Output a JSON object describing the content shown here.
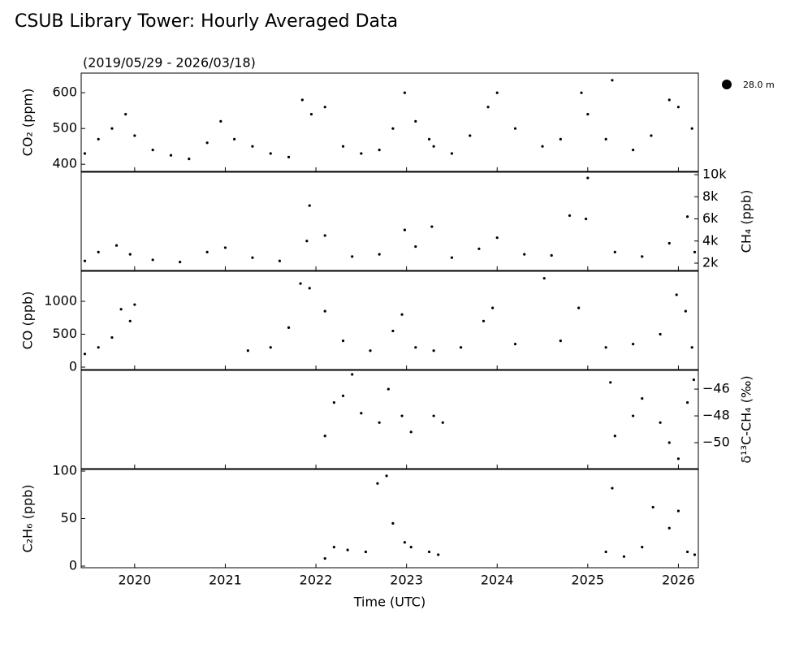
{
  "chart_data": {
    "type": "scatter",
    "title": "CSUB Library Tower: Hourly Averaged Data",
    "subtitle": "(2019/05/29 - 2026/03/18)",
    "xlabel": "Time (UTC)",
    "xlim": [
      2019.41,
      2026.22
    ],
    "xticks": [
      2020,
      2021,
      2022,
      2023,
      2024,
      2025,
      2026
    ],
    "legend": "upper right",
    "panels": [
      {
        "ylabel": "CO₂ (ppm)",
        "side": "left",
        "ylim": [
          380,
          655
        ],
        "yticks": [
          400,
          500,
          600
        ],
        "series": [
          {
            "name": "28.0 m",
            "color": "#000000",
            "x": [
              2019.45,
              2019.6,
              2019.75,
              2019.9,
              2020.0,
              2020.2,
              2020.4,
              2020.6,
              2020.8,
              2020.95,
              2021.1,
              2021.3,
              2021.5,
              2021.7,
              2021.85,
              2021.95,
              2022.1,
              2022.3,
              2022.5,
              2022.7,
              2022.85,
              2022.98,
              2023.1,
              2023.25,
              2023.3,
              2023.5,
              2023.7,
              2023.9,
              2024.0,
              2024.2,
              2024.5,
              2024.7,
              2024.93,
              2025.0,
              2025.2,
              2025.27,
              2025.5,
              2025.7,
              2025.9,
              2026.0,
              2026.15
            ],
            "values": [
              430,
              470,
              500,
              540,
              480,
              440,
              425,
              415,
              460,
              520,
              470,
              450,
              430,
              420,
              580,
              540,
              560,
              450,
              430,
              440,
              500,
              600,
              520,
              470,
              450,
              430,
              480,
              560,
              600,
              500,
              450,
              470,
              600,
              540,
              470,
              635,
              440,
              480,
              580,
              560,
              500
            ]
          }
        ]
      },
      {
        "ylabel": "CH₄ (ppb)",
        "side": "right",
        "ylim": [
          1340,
          10220
        ],
        "yticks": [
          {
            "value": 2000,
            "label": "2k"
          },
          {
            "value": 4000,
            "label": "4k"
          },
          {
            "value": 6000,
            "label": "6k"
          },
          {
            "value": 8000,
            "label": "8k"
          },
          {
            "value": 10000,
            "label": "10k"
          }
        ],
        "series": [
          {
            "color": "#000000",
            "x": [
              2019.45,
              2019.6,
              2019.8,
              2019.95,
              2020.2,
              2020.5,
              2020.8,
              2021.0,
              2021.3,
              2021.6,
              2021.9,
              2021.93,
              2022.1,
              2022.4,
              2022.7,
              2022.98,
              2023.1,
              2023.28,
              2023.5,
              2023.8,
              2024.0,
              2024.3,
              2024.6,
              2024.8,
              2024.98,
              2025.0,
              2025.3,
              2025.6,
              2025.9,
              2026.1,
              2026.18
            ],
            "values": [
              2200,
              3000,
              3600,
              2800,
              2300,
              2100,
              3000,
              3400,
              2500,
              2200,
              4000,
              7200,
              4500,
              2600,
              2800,
              5000,
              3500,
              5300,
              2500,
              3300,
              4300,
              2800,
              2700,
              6300,
              6000,
              9700,
              3000,
              2600,
              3800,
              6200,
              3000
            ]
          }
        ]
      },
      {
        "ylabel": "CO (ppb)",
        "side": "left",
        "ylim": [
          -37,
          1457
        ],
        "yticks": [
          0,
          500,
          1000
        ],
        "series": [
          {
            "color": "#000000",
            "x": [
              2019.45,
              2019.6,
              2019.75,
              2019.85,
              2019.95,
              2020.0,
              2021.25,
              2021.5,
              2021.7,
              2021.83,
              2021.93,
              2022.1,
              2022.3,
              2022.6,
              2022.85,
              2022.95,
              2023.1,
              2023.3,
              2023.6,
              2023.85,
              2023.95,
              2024.2,
              2024.52,
              2024.7,
              2024.9,
              2025.2,
              2025.5,
              2025.8,
              2025.98,
              2026.08,
              2026.15
            ],
            "values": [
              200,
              300,
              450,
              880,
              700,
              950,
              250,
              300,
              600,
              1270,
              1200,
              850,
              400,
              250,
              550,
              800,
              300,
              250,
              300,
              700,
              900,
              350,
              1350,
              400,
              900,
              300,
              350,
              500,
              1100,
              850,
              300
            ]
          }
        ]
      },
      {
        "ylabel": "δ¹³C-CH₄ (‰)",
        "side": "right",
        "ylim": [
          -51.94,
          -44.6
        ],
        "yticks": [
          {
            "value": -50,
            "label": "−50"
          },
          {
            "value": -48,
            "label": "−48"
          },
          {
            "value": -46,
            "label": "−46"
          }
        ],
        "series": [
          {
            "color": "#000000",
            "x": [
              2022.1,
              2022.2,
              2022.3,
              2022.4,
              2022.5,
              2022.7,
              2022.8,
              2022.95,
              2023.05,
              2023.3,
              2023.4,
              2025.25,
              2025.3,
              2025.5,
              2025.6,
              2025.8,
              2025.9,
              2026.0,
              2026.1,
              2026.17
            ],
            "values": [
              -49.5,
              -47,
              -46.5,
              -44.9,
              -47.8,
              -48.5,
              -46,
              -48,
              -49.2,
              -48,
              -48.5,
              -45.5,
              -49.5,
              -48,
              -46.7,
              -48.5,
              -50,
              -51.2,
              -47,
              -45.3
            ]
          }
        ]
      },
      {
        "ylabel": "C₂H₆ (ppb)",
        "side": "left",
        "ylim": [
          -1.7,
          101.7
        ],
        "yticks": [
          0,
          50,
          100
        ],
        "series": [
          {
            "color": "#000000",
            "x": [
              2022.1,
              2022.2,
              2022.35,
              2022.55,
              2022.68,
              2022.78,
              2022.85,
              2022.98,
              2023.05,
              2023.25,
              2023.35,
              2025.2,
              2025.27,
              2025.4,
              2025.6,
              2025.72,
              2025.9,
              2026.0,
              2026.1,
              2026.18
            ],
            "values": [
              8,
              20,
              17,
              15,
              87,
              95,
              45,
              25,
              20,
              15,
              12,
              15,
              82,
              10,
              20,
              62,
              40,
              58,
              15,
              12
            ]
          }
        ]
      }
    ]
  }
}
